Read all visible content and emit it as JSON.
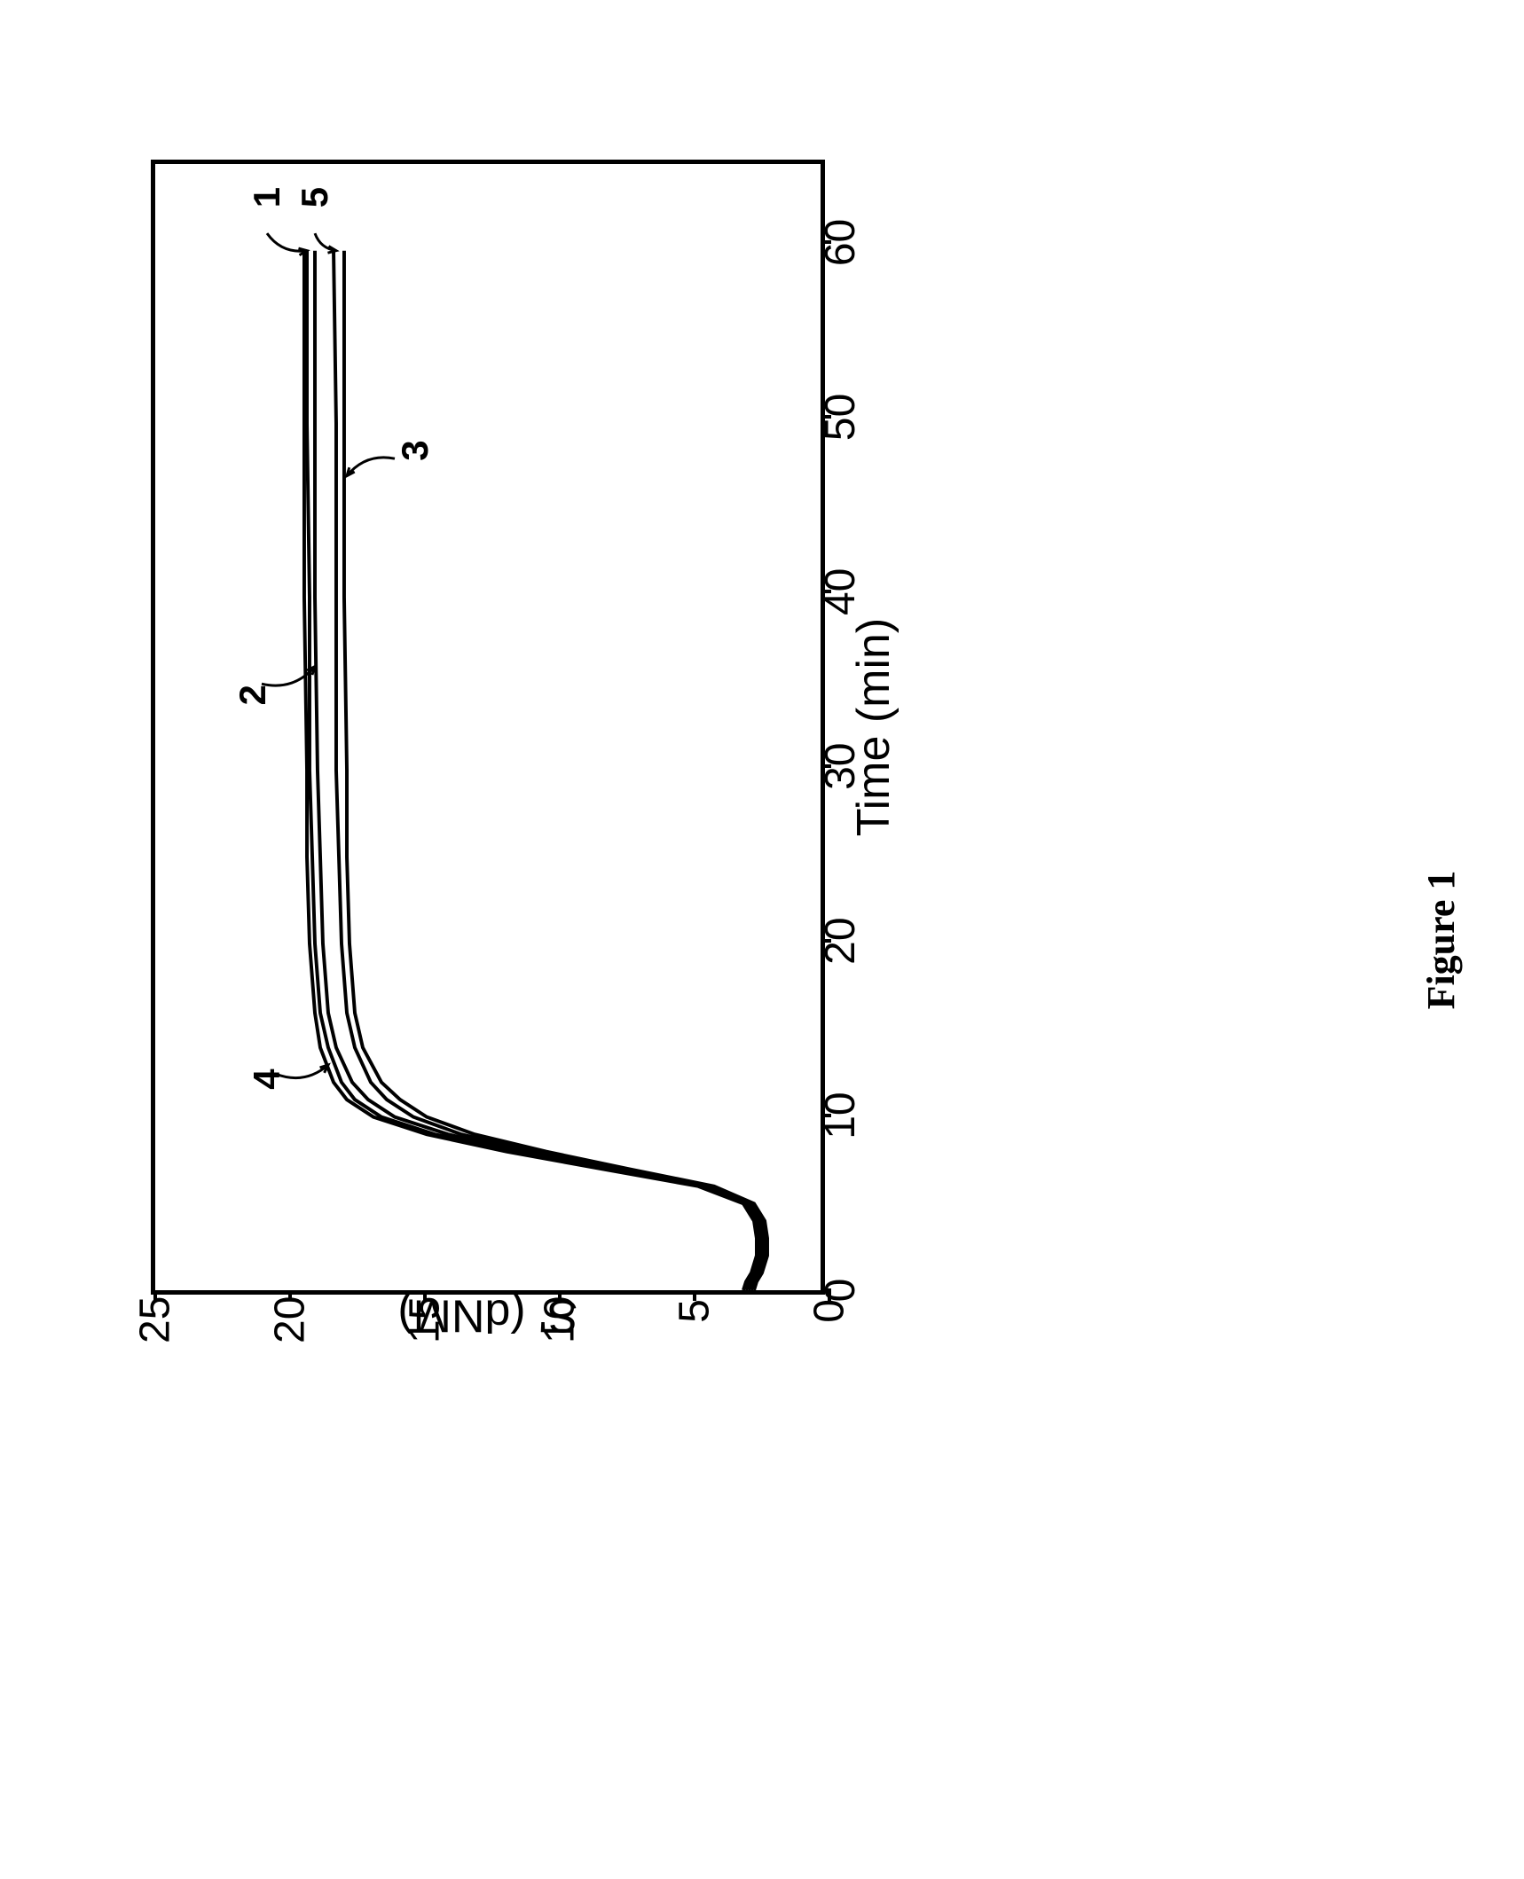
{
  "figure": {
    "caption": "Figure 1",
    "type": "line",
    "xlabel": "Time (min)",
    "ylabel": "S' (dNM)",
    "xlim": [
      0,
      65
    ],
    "ylim": [
      0,
      25
    ],
    "xtick_values": [
      0,
      10,
      20,
      30,
      40,
      50,
      60
    ],
    "xtick_labels": [
      "0",
      "10",
      "20",
      "30",
      "40",
      "50",
      "60"
    ],
    "ytick_values": [
      0,
      5,
      10,
      15,
      20,
      25
    ],
    "ytick_labels": [
      "0",
      "5",
      "10",
      "15",
      "20",
      "25"
    ],
    "background_color": "#ffffff",
    "border_color": "#000000",
    "line_color": "#000000",
    "line_width": 4,
    "label_fontsize": 52,
    "tick_fontsize": 48,
    "curve_label_fontsize": 42,
    "series": [
      {
        "id": "1",
        "data": [
          [
            0,
            2.8
          ],
          [
            0.5,
            2.7
          ],
          [
            1,
            2.5
          ],
          [
            2,
            2.3
          ],
          [
            3,
            2.3
          ],
          [
            4,
            2.4
          ],
          [
            5,
            2.8
          ],
          [
            6,
            4.5
          ],
          [
            7,
            8.0
          ],
          [
            8,
            11.5
          ],
          [
            9,
            14.5
          ],
          [
            10,
            16.5
          ],
          [
            11,
            17.5
          ],
          [
            12,
            18.0
          ],
          [
            14,
            18.5
          ],
          [
            16,
            18.8
          ],
          [
            20,
            19.0
          ],
          [
            25,
            19.1
          ],
          [
            30,
            19.2
          ],
          [
            40,
            19.2
          ],
          [
            50,
            19.3
          ],
          [
            60,
            19.3
          ]
        ]
      },
      {
        "id": "2",
        "data": [
          [
            0,
            2.7
          ],
          [
            0.5,
            2.6
          ],
          [
            1,
            2.4
          ],
          [
            2,
            2.2
          ],
          [
            3,
            2.2
          ],
          [
            4,
            2.3
          ],
          [
            5,
            2.7
          ],
          [
            6,
            4.3
          ],
          [
            7,
            7.8
          ],
          [
            8,
            11.2
          ],
          [
            9,
            14.0
          ],
          [
            10,
            16.0
          ],
          [
            11,
            17.0
          ],
          [
            12,
            17.6
          ],
          [
            14,
            18.2
          ],
          [
            16,
            18.5
          ],
          [
            20,
            18.7
          ],
          [
            25,
            18.8
          ],
          [
            30,
            18.9
          ],
          [
            40,
            19.0
          ],
          [
            50,
            19.0
          ],
          [
            60,
            19.0
          ]
        ]
      },
      {
        "id": "3",
        "data": [
          [
            0,
            2.5
          ],
          [
            0.5,
            2.4
          ],
          [
            1,
            2.2
          ],
          [
            2,
            2.0
          ],
          [
            3,
            2.0
          ],
          [
            4,
            2.1
          ],
          [
            5,
            2.5
          ],
          [
            6,
            4.0
          ],
          [
            7,
            7.2
          ],
          [
            8,
            10.3
          ],
          [
            9,
            13.0
          ],
          [
            10,
            14.8
          ],
          [
            11,
            15.8
          ],
          [
            12,
            16.5
          ],
          [
            14,
            17.2
          ],
          [
            16,
            17.5
          ],
          [
            20,
            17.7
          ],
          [
            25,
            17.8
          ],
          [
            30,
            17.8
          ],
          [
            40,
            17.9
          ],
          [
            50,
            17.9
          ],
          [
            60,
            17.9
          ]
        ]
      },
      {
        "id": "4",
        "data": [
          [
            0,
            2.9
          ],
          [
            0.5,
            2.8
          ],
          [
            1,
            2.6
          ],
          [
            2,
            2.4
          ],
          [
            3,
            2.4
          ],
          [
            4,
            2.5
          ],
          [
            5,
            2.9
          ],
          [
            6,
            4.6
          ],
          [
            7,
            8.2
          ],
          [
            8,
            11.8
          ],
          [
            9,
            14.8
          ],
          [
            10,
            16.8
          ],
          [
            11,
            17.8
          ],
          [
            12,
            18.3
          ],
          [
            14,
            18.8
          ],
          [
            16,
            19.0
          ],
          [
            20,
            19.2
          ],
          [
            25,
            19.3
          ],
          [
            30,
            19.3
          ],
          [
            40,
            19.4
          ],
          [
            50,
            19.4
          ],
          [
            60,
            19.4
          ]
        ]
      },
      {
        "id": "5",
        "data": [
          [
            0,
            2.6
          ],
          [
            0.5,
            2.5
          ],
          [
            1,
            2.3
          ],
          [
            2,
            2.1
          ],
          [
            3,
            2.1
          ],
          [
            4,
            2.2
          ],
          [
            5,
            2.6
          ],
          [
            6,
            4.1
          ],
          [
            7,
            7.5
          ],
          [
            8,
            10.8
          ],
          [
            9,
            13.5
          ],
          [
            10,
            15.3
          ],
          [
            11,
            16.3
          ],
          [
            12,
            16.9
          ],
          [
            14,
            17.5
          ],
          [
            16,
            17.8
          ],
          [
            20,
            18.0
          ],
          [
            25,
            18.1
          ],
          [
            30,
            18.2
          ],
          [
            40,
            18.2
          ],
          [
            50,
            18.2
          ],
          [
            60,
            18.3
          ]
        ]
      }
    ],
    "curve_labels": [
      {
        "id": "1",
        "text": "1",
        "pos_x": 62.5,
        "pos_y": 21.0
      },
      {
        "id": "2",
        "text": "2",
        "pos_x": 34,
        "pos_y": 21.5
      },
      {
        "id": "3",
        "text": "3",
        "pos_x": 48,
        "pos_y": 15.5
      },
      {
        "id": "4",
        "text": "4",
        "pos_x": 12,
        "pos_y": 21.0
      },
      {
        "id": "5",
        "text": "5",
        "pos_x": 62.5,
        "pos_y": 19.2
      }
    ],
    "leaders": [
      {
        "from": [
          61,
          20.8
        ],
        "to": [
          60,
          19.3
        ]
      },
      {
        "from": [
          35,
          21.0
        ],
        "to": [
          36,
          19.0
        ]
      },
      {
        "from": [
          48,
          16.0
        ],
        "to": [
          47,
          17.8
        ]
      },
      {
        "from": [
          12.5,
          20.5
        ],
        "to": [
          13,
          18.5
        ]
      },
      {
        "from": [
          61,
          19.0
        ],
        "to": [
          60,
          18.2
        ]
      }
    ]
  }
}
